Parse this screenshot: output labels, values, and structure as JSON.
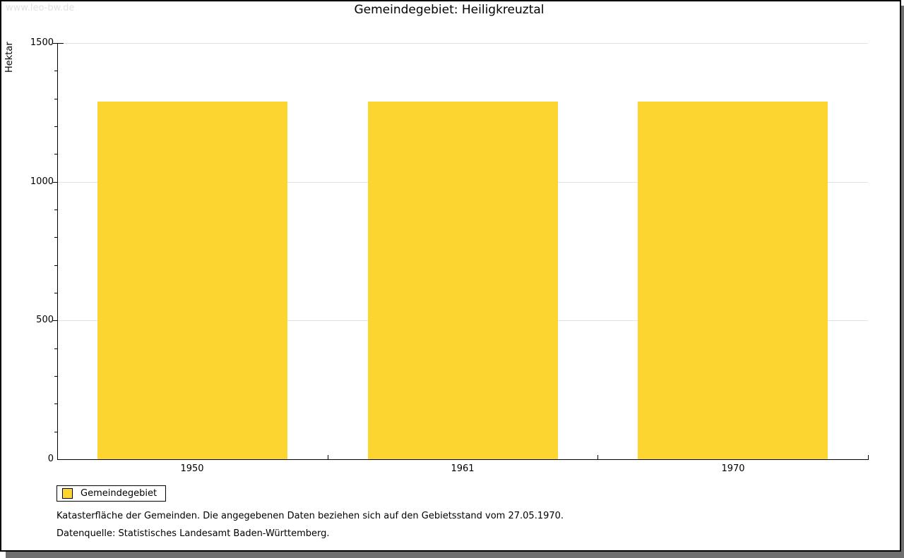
{
  "watermark": "www.leo-bw.de",
  "title": "Gemeindegebiet: Heiligkreuztal",
  "chart_data": {
    "type": "bar",
    "title": "Gemeindegebiet: Heiligkreuztal",
    "categories": [
      "1950",
      "1961",
      "1970"
    ],
    "series": [
      {
        "name": "Gemeindegebiet",
        "values": [
          1290,
          1290,
          1290
        ]
      }
    ],
    "xlabel": "",
    "ylabel": "Hektar",
    "ylim": [
      0,
      1500
    ],
    "ytick_major": 500,
    "ytick_minor": 100,
    "grid": "horizontal-major",
    "legend_position": "bottom-left",
    "bar_color": "#FCD530"
  },
  "legend": {
    "items": [
      {
        "label": "Gemeindegebiet",
        "color": "#FCD530"
      }
    ]
  },
  "footnotes": [
    "Katasterfläche der Gemeinden. Die angegebenen Daten beziehen sich auf den Gebietsstand vom 27.05.1970.",
    "Datenquelle: Statistisches Landesamt Baden-Württemberg."
  ],
  "colors": {
    "bar": "#FCD530",
    "gridline": "#E2E2E2",
    "axis": "#000000",
    "watermark": "#E2E2E2",
    "shadow": "#6F6F6F",
    "background": "#FFFFFF"
  }
}
